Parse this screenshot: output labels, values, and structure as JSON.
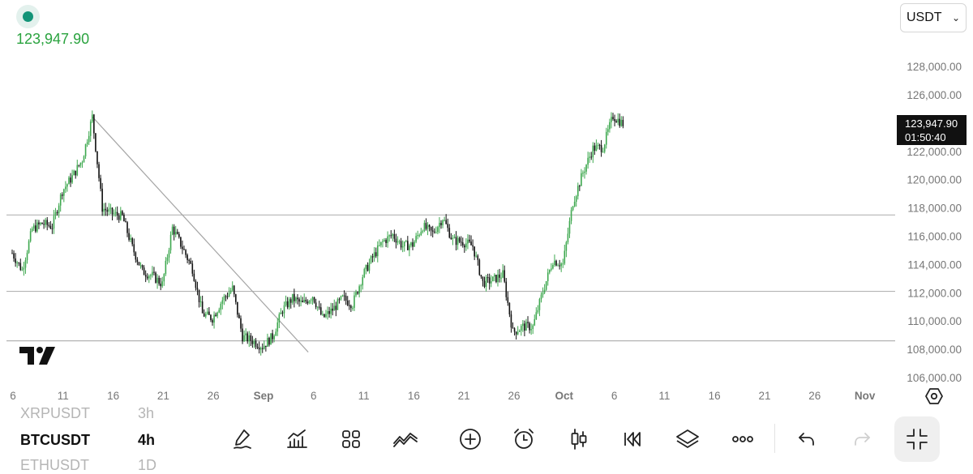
{
  "header": {
    "last_price": "123,947.90",
    "status_color": "#139478",
    "price_color": "#2aa33f"
  },
  "currency": {
    "selected": "USDT",
    "icon": "chevron-down-icon"
  },
  "price_badge": {
    "price": "123,947.90",
    "countdown": "01:50:40"
  },
  "chart_data": {
    "type": "candlestick",
    "title": "",
    "symbol": "BTCUSDT",
    "timeframe": "4h",
    "x_ticks": [
      "6",
      "11",
      "16",
      "21",
      "26",
      "Sep",
      "6",
      "11",
      "16",
      "21",
      "26",
      "Oct",
      "6",
      "11",
      "16",
      "21",
      "26",
      "Nov"
    ],
    "y_ticks": [
      "106,000.00",
      "108,000.00",
      "110,000.00",
      "112,000.00",
      "114,000.00",
      "116,000.00",
      "118,000.00",
      "120,000.00",
      "122,000.00",
      "124,000.00",
      "126,000.00",
      "128,000.00"
    ],
    "ylim": [
      105800,
      130000
    ],
    "up_color": "#3ea84f",
    "down_color": "#111111",
    "horizontal_lines": [
      117500,
      112100,
      108600
    ],
    "trendline": {
      "from": [
        "Aug 14",
        124450
      ],
      "to": [
        "Sep 4",
        107800
      ]
    },
    "price_path": [
      [
        "Aug 6",
        114800
      ],
      [
        "Aug 7",
        113600
      ],
      [
        "Aug 8",
        116500
      ],
      [
        "Aug 9",
        116900
      ],
      [
        "Aug 10",
        116700
      ],
      [
        "Aug 11",
        119200
      ],
      [
        "Aug 12",
        120200
      ],
      [
        "Aug 13",
        121400
      ],
      [
        "Aug 14",
        124450
      ],
      [
        "Aug 15",
        118000
      ],
      [
        "Aug 16",
        117600
      ],
      [
        "Aug 17",
        117400
      ],
      [
        "Aug 18",
        115200
      ],
      [
        "Aug 19",
        113500
      ],
      [
        "Aug 20",
        113200
      ],
      [
        "Aug 21",
        112600
      ],
      [
        "Aug 22",
        116600
      ],
      [
        "Aug 23",
        115200
      ],
      [
        "Aug 24",
        113700
      ],
      [
        "Aug 25",
        110500
      ],
      [
        "Aug 26",
        110200
      ],
      [
        "Aug 27",
        111500
      ],
      [
        "Aug 28",
        112300
      ],
      [
        "Aug 29",
        108900
      ],
      [
        "Aug 30",
        108600
      ],
      [
        "Aug 31",
        108200
      ],
      [
        "Sep 1",
        108900
      ],
      [
        "Sep 2",
        110800
      ],
      [
        "Sep 3",
        111600
      ],
      [
        "Sep 4",
        111200
      ],
      [
        "Sep 5",
        111800
      ],
      [
        "Sep 6",
        110200
      ],
      [
        "Sep 7",
        110800
      ],
      [
        "Sep 8",
        111600
      ],
      [
        "Sep 9",
        111200
      ],
      [
        "Sep 10",
        113200
      ],
      [
        "Sep 11",
        114500
      ],
      [
        "Sep 12",
        115600
      ],
      [
        "Sep 13",
        116100
      ],
      [
        "Sep 14",
        115300
      ],
      [
        "Sep 15",
        115400
      ],
      [
        "Sep 16",
        116700
      ],
      [
        "Sep 17",
        116200
      ],
      [
        "Sep 18",
        117300
      ],
      [
        "Sep 19",
        115700
      ],
      [
        "Sep 20",
        115600
      ],
      [
        "Sep 21",
        115300
      ],
      [
        "Sep 22",
        112700
      ],
      [
        "Sep 23",
        112900
      ],
      [
        "Sep 24",
        113300
      ],
      [
        "Sep 25",
        109200
      ],
      [
        "Sep 26",
        109600
      ],
      [
        "Sep 27",
        109600
      ],
      [
        "Sep 28",
        112100
      ],
      [
        "Sep 29",
        114300
      ],
      [
        "Sep 30",
        114000
      ],
      [
        "Oct 1",
        118400
      ],
      [
        "Oct 2",
        120500
      ],
      [
        "Oct 3",
        122200
      ],
      [
        "Oct 4",
        122300
      ],
      [
        "Oct 5",
        124500
      ],
      [
        "Oct 6",
        123947.9
      ]
    ]
  },
  "watchlist": [
    {
      "symbol": "XRPUSDT",
      "interval": "3h",
      "state": "faded"
    },
    {
      "symbol": "BTCUSDT",
      "interval": "4h",
      "state": "active"
    },
    {
      "symbol": "ETHUSDT",
      "interval": "1D",
      "state": "faded"
    }
  ],
  "toolbar": [
    "draw-pen-icon",
    "indicators-icon",
    "grid-icon",
    "compare-icon",
    "add-circle-icon",
    "alarm-clock-icon",
    "candlestick-icon",
    "replay-rewind-icon",
    "layers-icon",
    "more-icon",
    "undo-icon",
    "redo-icon",
    "fullscreen-collapse-icon"
  ],
  "colors": {
    "grid_line": "#b4b4b4",
    "axis_text": "#777777",
    "trend_line": "#a5a5a5"
  }
}
